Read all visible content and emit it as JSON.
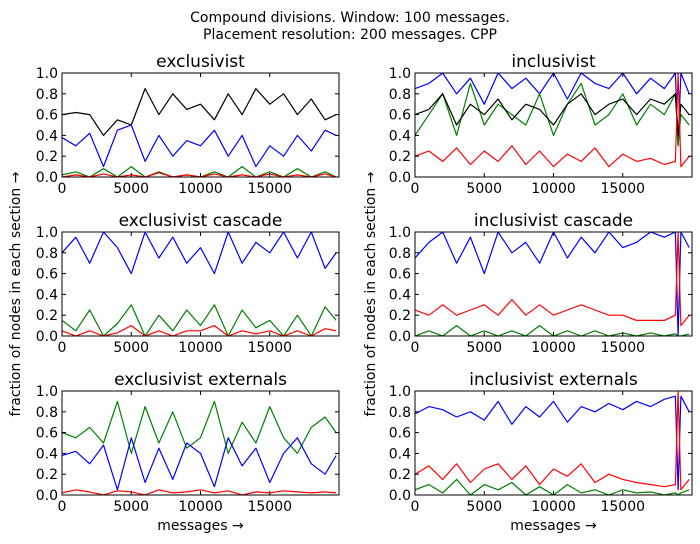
{
  "figure": {
    "suptitle_line1": "Compound divisions. Window: 100 messages.",
    "suptitle_line2": "Placement resolution: 200 messages. CPP"
  },
  "colors": {
    "black": "#000000",
    "blue": "#0000ff",
    "green": "#007f00",
    "red": "#ff0000"
  },
  "chart_data": [
    {
      "type": "line",
      "title": "exclusivist",
      "xlabel": "",
      "ylabel": "",
      "xlim": [
        0,
        20000
      ],
      "ylim": [
        0,
        1.0
      ],
      "xticks": [
        0,
        5000,
        10000,
        15000
      ],
      "yticks": [
        0.0,
        0.2,
        0.4,
        0.6,
        0.8,
        1.0
      ],
      "x": [
        0,
        1000,
        2000,
        3000,
        4000,
        5000,
        6000,
        7000,
        8000,
        9000,
        10000,
        11000,
        12000,
        13000,
        14000,
        15000,
        16000,
        17000,
        18000,
        19000,
        19800
      ],
      "series": [
        {
          "color": "black",
          "values": [
            0.6,
            0.62,
            0.6,
            0.4,
            0.55,
            0.5,
            0.85,
            0.6,
            0.8,
            0.65,
            0.7,
            0.55,
            0.8,
            0.6,
            0.85,
            0.7,
            0.8,
            0.6,
            0.75,
            0.55,
            0.6
          ]
        },
        {
          "color": "blue",
          "values": [
            0.38,
            0.3,
            0.42,
            0.1,
            0.45,
            0.5,
            0.15,
            0.4,
            0.2,
            0.35,
            0.3,
            0.45,
            0.2,
            0.4,
            0.1,
            0.3,
            0.2,
            0.4,
            0.25,
            0.45,
            0.4
          ]
        },
        {
          "color": "green",
          "values": [
            0.02,
            0.05,
            0.0,
            0.08,
            0.0,
            0.1,
            0.0,
            0.05,
            0.0,
            0.02,
            0.0,
            0.05,
            0.0,
            0.1,
            0.0,
            0.05,
            0.0,
            0.08,
            0.0,
            0.05,
            0.0
          ]
        },
        {
          "color": "red",
          "values": [
            0.0,
            0.02,
            0.0,
            0.03,
            0.0,
            0.02,
            0.0,
            0.04,
            0.0,
            0.02,
            0.0,
            0.03,
            0.0,
            0.02,
            0.0,
            0.03,
            0.0,
            0.02,
            0.0,
            0.03,
            0.0
          ]
        }
      ]
    },
    {
      "type": "line",
      "title": "inclusivist",
      "xlabel": "",
      "ylabel": "",
      "xlim": [
        0,
        20000
      ],
      "ylim": [
        0,
        1.0
      ],
      "xticks": [
        0,
        5000,
        10000,
        15000
      ],
      "yticks": [
        0.0,
        0.2,
        0.4,
        0.6,
        0.8,
        1.0
      ],
      "x": [
        0,
        1000,
        2000,
        3000,
        4000,
        5000,
        6000,
        7000,
        8000,
        9000,
        10000,
        11000,
        12000,
        13000,
        14000,
        15000,
        16000,
        17000,
        18000,
        18800,
        19000,
        19200,
        19800
      ],
      "series": [
        {
          "color": "blue",
          "values": [
            0.85,
            0.9,
            1.0,
            0.8,
            0.95,
            0.7,
            1.0,
            0.85,
            0.95,
            0.8,
            1.0,
            0.75,
            1.0,
            0.9,
            0.85,
            1.0,
            0.8,
            0.95,
            0.85,
            1.0,
            0.3,
            1.0,
            0.8
          ]
        },
        {
          "color": "green",
          "values": [
            0.4,
            0.6,
            0.8,
            0.4,
            0.9,
            0.5,
            0.7,
            0.6,
            0.5,
            0.8,
            0.4,
            0.7,
            0.9,
            0.5,
            0.6,
            0.8,
            0.5,
            0.7,
            0.6,
            0.8,
            0.3,
            0.6,
            0.5
          ]
        },
        {
          "color": "black",
          "values": [
            0.6,
            0.65,
            0.8,
            0.5,
            0.7,
            0.6,
            0.75,
            0.55,
            0.7,
            0.65,
            0.5,
            0.7,
            0.8,
            0.6,
            0.7,
            0.75,
            0.6,
            0.75,
            0.7,
            0.8,
            0.4,
            0.7,
            0.6
          ]
        },
        {
          "color": "red",
          "values": [
            0.2,
            0.25,
            0.15,
            0.28,
            0.12,
            0.25,
            0.15,
            0.3,
            0.12,
            0.25,
            0.1,
            0.22,
            0.15,
            0.28,
            0.1,
            0.22,
            0.15,
            0.18,
            0.12,
            0.15,
            1.0,
            0.1,
            0.2
          ]
        }
      ]
    },
    {
      "type": "line",
      "title": "exclusivist cascade",
      "xlabel": "",
      "ylabel": "",
      "xlim": [
        0,
        20000
      ],
      "ylim": [
        0,
        1.0
      ],
      "xticks": [
        0,
        5000,
        10000,
        15000
      ],
      "yticks": [
        0.0,
        0.2,
        0.4,
        0.6,
        0.8,
        1.0
      ],
      "x": [
        0,
        1000,
        2000,
        3000,
        4000,
        5000,
        6000,
        7000,
        8000,
        9000,
        10000,
        11000,
        12000,
        13000,
        14000,
        15000,
        16000,
        17000,
        18000,
        19000,
        19800
      ],
      "series": [
        {
          "color": "blue",
          "values": [
            0.8,
            0.95,
            0.7,
            1.0,
            0.85,
            0.6,
            1.0,
            0.75,
            0.95,
            0.7,
            0.85,
            0.6,
            1.0,
            0.7,
            0.9,
            0.8,
            1.0,
            0.75,
            1.0,
            0.65,
            0.8
          ]
        },
        {
          "color": "green",
          "values": [
            0.15,
            0.05,
            0.25,
            0.0,
            0.12,
            0.3,
            0.0,
            0.2,
            0.05,
            0.25,
            0.1,
            0.3,
            0.0,
            0.25,
            0.08,
            0.15,
            0.0,
            0.2,
            0.0,
            0.28,
            0.15
          ]
        },
        {
          "color": "red",
          "values": [
            0.05,
            0.0,
            0.05,
            0.0,
            0.03,
            0.1,
            0.0,
            0.05,
            0.0,
            0.05,
            0.05,
            0.1,
            0.0,
            0.05,
            0.02,
            0.05,
            0.0,
            0.05,
            0.0,
            0.07,
            0.05
          ]
        }
      ]
    },
    {
      "type": "line",
      "title": "inclusivist cascade",
      "xlabel": "",
      "ylabel": "",
      "xlim": [
        0,
        20000
      ],
      "ylim": [
        0,
        1.0
      ],
      "xticks": [
        0,
        5000,
        10000,
        15000
      ],
      "yticks": [
        0.0,
        0.2,
        0.4,
        0.6,
        0.8,
        1.0
      ],
      "x": [
        0,
        1000,
        2000,
        3000,
        4000,
        5000,
        6000,
        7000,
        8000,
        9000,
        10000,
        11000,
        12000,
        13000,
        14000,
        15000,
        16000,
        17000,
        18000,
        18800,
        19000,
        19200,
        19800
      ],
      "series": [
        {
          "color": "blue",
          "values": [
            0.75,
            0.9,
            1.0,
            0.7,
            0.95,
            0.6,
            1.0,
            0.8,
            0.9,
            0.7,
            1.0,
            0.75,
            0.95,
            0.8,
            1.0,
            0.85,
            0.9,
            1.0,
            0.95,
            1.0,
            0.0,
            1.0,
            0.85
          ]
        },
        {
          "color": "red",
          "values": [
            0.25,
            0.2,
            0.3,
            0.2,
            0.25,
            0.3,
            0.2,
            0.35,
            0.2,
            0.3,
            0.2,
            0.25,
            0.3,
            0.25,
            0.2,
            0.2,
            0.15,
            0.15,
            0.15,
            0.2,
            1.0,
            0.1,
            0.2
          ]
        },
        {
          "color": "green",
          "values": [
            0.0,
            0.05,
            0.0,
            0.1,
            0.0,
            0.05,
            0.0,
            0.05,
            0.0,
            0.1,
            0.0,
            0.05,
            0.0,
            0.05,
            0.0,
            0.03,
            0.0,
            0.03,
            0.0,
            0.02,
            0.0,
            0.0,
            0.02
          ]
        }
      ]
    },
    {
      "type": "line",
      "title": "exclusivist externals",
      "xlabel": "messages →",
      "ylabel": "",
      "xlim": [
        0,
        20000
      ],
      "ylim": [
        0,
        1.0
      ],
      "xticks": [
        0,
        5000,
        10000,
        15000
      ],
      "yticks": [
        0.0,
        0.2,
        0.4,
        0.6,
        0.8,
        1.0
      ],
      "x": [
        0,
        1000,
        2000,
        3000,
        4000,
        5000,
        6000,
        7000,
        8000,
        9000,
        10000,
        11000,
        12000,
        13000,
        14000,
        15000,
        16000,
        17000,
        18000,
        19000,
        19800
      ],
      "series": [
        {
          "color": "green",
          "values": [
            0.6,
            0.55,
            0.65,
            0.5,
            0.9,
            0.4,
            0.85,
            0.5,
            0.8,
            0.45,
            0.55,
            0.9,
            0.4,
            0.7,
            0.5,
            0.85,
            0.55,
            0.4,
            0.65,
            0.75,
            0.6
          ]
        },
        {
          "color": "blue",
          "values": [
            0.38,
            0.42,
            0.3,
            0.48,
            0.05,
            0.55,
            0.12,
            0.45,
            0.15,
            0.5,
            0.4,
            0.08,
            0.55,
            0.28,
            0.45,
            0.12,
            0.4,
            0.55,
            0.3,
            0.2,
            0.38
          ]
        },
        {
          "color": "red",
          "values": [
            0.02,
            0.05,
            0.03,
            0.0,
            0.04,
            0.03,
            0.0,
            0.05,
            0.02,
            0.03,
            0.05,
            0.02,
            0.04,
            0.0,
            0.03,
            0.02,
            0.04,
            0.03,
            0.02,
            0.03,
            0.02
          ]
        }
      ]
    },
    {
      "type": "line",
      "title": "inclusivist externals",
      "xlabel": "messages →",
      "ylabel": "",
      "xlim": [
        0,
        20000
      ],
      "ylim": [
        0,
        1.0
      ],
      "xticks": [
        0,
        5000,
        10000,
        15000
      ],
      "yticks": [
        0.0,
        0.2,
        0.4,
        0.6,
        0.8,
        1.0
      ],
      "x": [
        0,
        1000,
        2000,
        3000,
        4000,
        5000,
        6000,
        7000,
        8000,
        9000,
        10000,
        11000,
        12000,
        13000,
        14000,
        15000,
        16000,
        17000,
        18000,
        18800,
        19000,
        19200,
        19800
      ],
      "series": [
        {
          "color": "blue",
          "values": [
            0.78,
            0.85,
            0.82,
            0.75,
            0.8,
            0.72,
            0.9,
            0.68,
            0.85,
            0.75,
            0.9,
            0.7,
            0.85,
            0.8,
            0.88,
            0.82,
            0.9,
            0.85,
            0.92,
            0.95,
            0.05,
            0.95,
            0.8
          ]
        },
        {
          "color": "red",
          "values": [
            0.2,
            0.28,
            0.15,
            0.3,
            0.12,
            0.25,
            0.3,
            0.15,
            0.28,
            0.1,
            0.25,
            0.18,
            0.3,
            0.12,
            0.2,
            0.15,
            0.12,
            0.1,
            0.08,
            0.1,
            1.0,
            0.05,
            0.15
          ]
        },
        {
          "color": "green",
          "values": [
            0.05,
            0.1,
            0.02,
            0.15,
            0.0,
            0.1,
            0.05,
            0.12,
            0.0,
            0.08,
            0.0,
            0.1,
            0.02,
            0.05,
            0.0,
            0.05,
            0.02,
            0.03,
            0.0,
            0.02,
            0.0,
            0.02,
            0.05
          ]
        }
      ]
    }
  ],
  "shared_ylabel": "fraction of nodes in each section →"
}
